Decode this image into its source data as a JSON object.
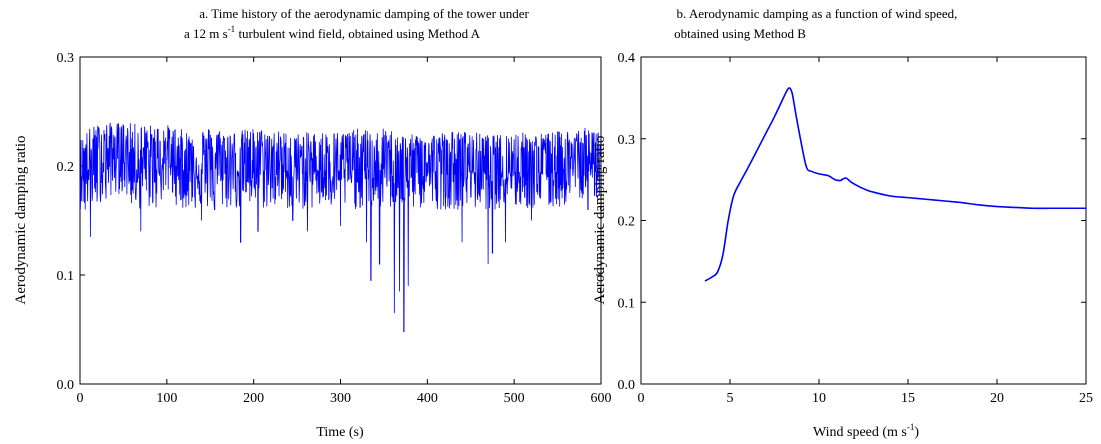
{
  "figure": {
    "panel_a": {
      "title_line1": "a. Time history of the aerodynamic damping of the tower under",
      "title_line2_pre": "a 12 m s",
      "title_line2_sup": "-1",
      "title_line2_post": " turbulent wind field, obtained using Method A",
      "xlabel": "Time (s)",
      "ylabel": "Aerodynamic damping ratio"
    },
    "panel_b": {
      "title_line1": "b. Aerodynamic damping as a function of wind speed,",
      "title_line2": "obtained using Method B",
      "xlabel_pre": "Wind speed (m s",
      "xlabel_sup": "-1",
      "xlabel_post": ")",
      "ylabel": "Aerodynamic damping ratio"
    }
  },
  "chart_data": [
    {
      "type": "line",
      "title": "a. Time history of the aerodynamic damping of the tower under a 12 m s-1 turbulent wind field, obtained using Method A",
      "xlabel": "Time (s)",
      "ylabel": "Aerodynamic damping ratio",
      "xlim": [
        0,
        600
      ],
      "ylim": [
        0,
        0.3
      ],
      "xticks": [
        0,
        100,
        200,
        300,
        400,
        500,
        600
      ],
      "xtick_labels": [
        "0",
        "100",
        "200",
        "300",
        "400",
        "500",
        "600"
      ],
      "yticks": [
        0,
        0.1,
        0.2,
        0.3
      ],
      "ytick_labels": [
        "0.0",
        "0.1",
        "0.2",
        "0.3"
      ],
      "grid": false,
      "line_color": "#0000ff",
      "envelope": {
        "x": [
          0,
          10,
          25,
          50,
          75,
          100,
          125,
          150,
          175,
          200,
          225,
          250,
          275,
          300,
          325,
          340,
          350,
          365,
          375,
          390,
          400,
          425,
          450,
          475,
          500,
          525,
          550,
          575,
          600
        ],
        "upper": [
          0.225,
          0.235,
          0.24,
          0.24,
          0.238,
          0.238,
          0.232,
          0.236,
          0.232,
          0.235,
          0.233,
          0.23,
          0.232,
          0.232,
          0.235,
          0.23,
          0.235,
          0.232,
          0.228,
          0.23,
          0.23,
          0.232,
          0.232,
          0.228,
          0.232,
          0.23,
          0.232,
          0.235,
          0.235
        ],
        "lower": [
          0.16,
          0.135,
          0.17,
          0.175,
          0.14,
          0.175,
          0.15,
          0.155,
          0.13,
          0.145,
          0.14,
          0.15,
          0.155,
          0.145,
          0.13,
          0.095,
          0.14,
          0.065,
          0.048,
          0.12,
          0.13,
          0.14,
          0.14,
          0.11,
          0.14,
          0.15,
          0.16,
          0.17,
          0.17
        ]
      },
      "dips": [
        [
          6,
          0.16
        ],
        [
          12,
          0.135
        ],
        [
          30,
          0.17
        ],
        [
          70,
          0.14
        ],
        [
          140,
          0.15
        ],
        [
          155,
          0.16
        ],
        [
          185,
          0.13
        ],
        [
          205,
          0.14
        ],
        [
          245,
          0.15
        ],
        [
          262,
          0.14
        ],
        [
          300,
          0.145
        ],
        [
          330,
          0.13
        ],
        [
          335,
          0.095
        ],
        [
          345,
          0.11
        ],
        [
          362,
          0.065
        ],
        [
          368,
          0.085
        ],
        [
          373,
          0.048
        ],
        [
          378,
          0.09
        ],
        [
          440,
          0.13
        ],
        [
          470,
          0.11
        ],
        [
          475,
          0.12
        ],
        [
          490,
          0.13
        ],
        [
          520,
          0.15
        ],
        [
          585,
          0.16
        ]
      ]
    },
    {
      "type": "line",
      "title": "b. Aerodynamic damping as a function of wind speed, obtained using Method B",
      "xlabel": "Wind speed (m s-1)",
      "ylabel": "Aerodynamic damping ratio",
      "xlim": [
        0,
        25
      ],
      "ylim": [
        0,
        0.4
      ],
      "xticks": [
        0,
        5,
        10,
        15,
        20,
        25
      ],
      "xtick_labels": [
        "0",
        "5",
        "10",
        "15",
        "20",
        "25"
      ],
      "yticks": [
        0,
        0.1,
        0.2,
        0.3,
        0.4
      ],
      "ytick_labels": [
        "0.0",
        "0.1",
        "0.2",
        "0.3",
        "0.4"
      ],
      "grid": false,
      "line_color": "#0000ff",
      "x": [
        3.6,
        4.0,
        4.3,
        4.6,
        4.9,
        5.2,
        5.6,
        6.0,
        6.5,
        7.0,
        7.5,
        8.0,
        8.2,
        8.35,
        8.5,
        8.7,
        9.0,
        9.3,
        9.6,
        10.0,
        10.5,
        10.9,
        11.2,
        11.5,
        11.8,
        12.2,
        12.6,
        13.0,
        14.0,
        15.0,
        16.0,
        17.0,
        18.0,
        19.0,
        20.0,
        21.0,
        22.0,
        23.0,
        24.0,
        25.0
      ],
      "y": [
        0.126,
        0.131,
        0.137,
        0.158,
        0.2,
        0.23,
        0.248,
        0.264,
        0.285,
        0.306,
        0.327,
        0.35,
        0.359,
        0.362,
        0.355,
        0.33,
        0.295,
        0.265,
        0.26,
        0.257,
        0.255,
        0.25,
        0.249,
        0.252,
        0.247,
        0.242,
        0.238,
        0.235,
        0.23,
        0.228,
        0.226,
        0.224,
        0.222,
        0.219,
        0.217,
        0.216,
        0.215,
        0.215,
        0.215,
        0.215
      ]
    }
  ]
}
